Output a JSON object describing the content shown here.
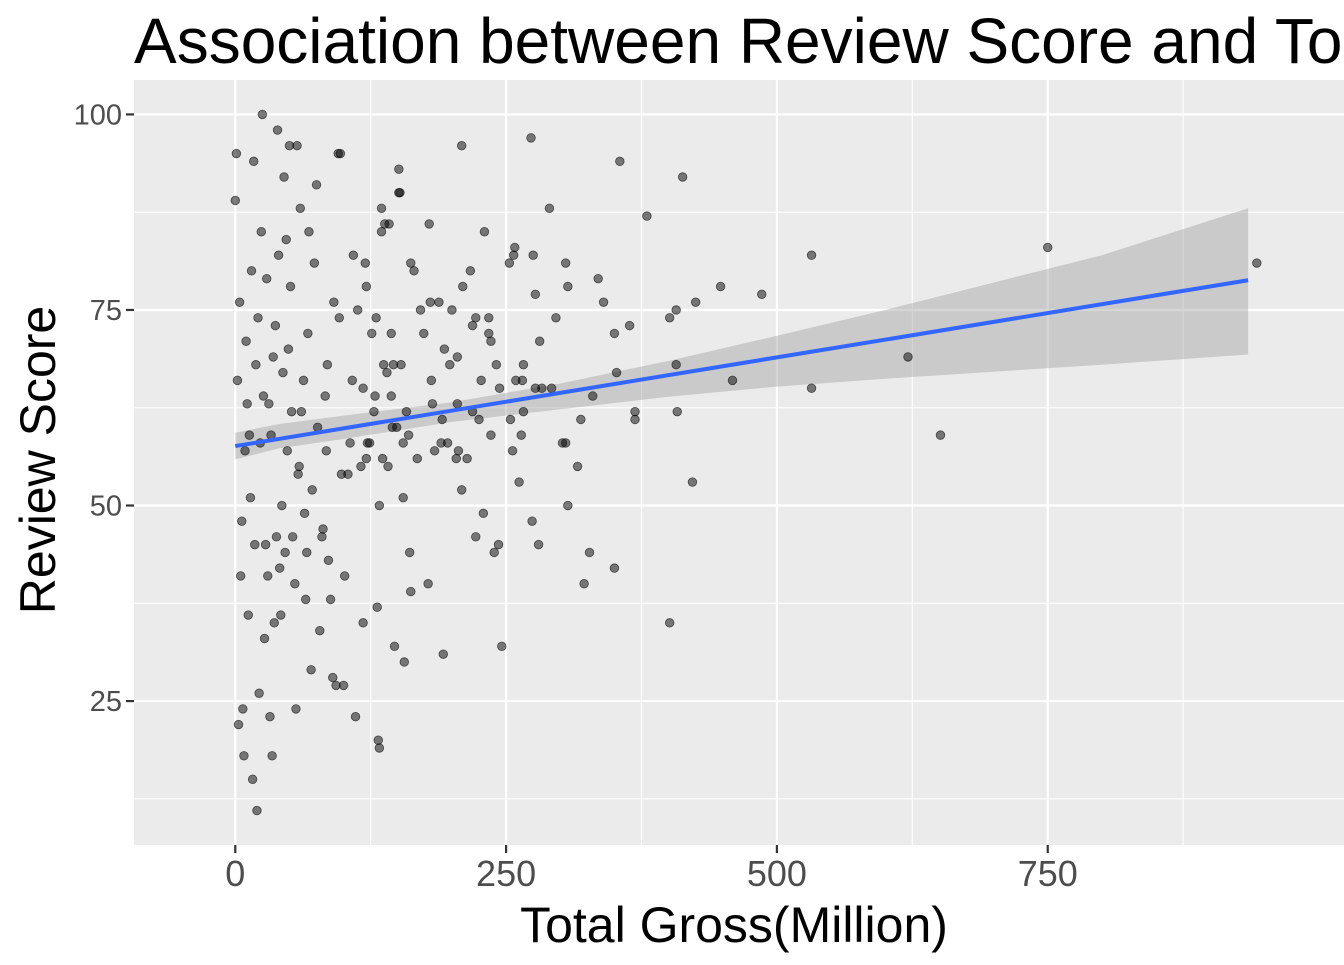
{
  "chart_data": {
    "type": "scatter",
    "title": "Association between Review Score and To",
    "xlabel": "Total Gross(Million)",
    "ylabel": "Review Score",
    "xlim": [
      -93.5,
      1023.5
    ],
    "ylim": [
      6.6,
      104.4
    ],
    "x_ticks": [
      0,
      250,
      500,
      750
    ],
    "x_tick_labels": [
      "0",
      "250",
      "500",
      "750"
    ],
    "y_ticks": [
      25,
      50,
      75,
      100
    ],
    "y_tick_labels": [
      "25",
      "50",
      "75",
      "100"
    ],
    "grid": true,
    "legend": "none",
    "colors": {
      "panel_background": "#ebebeb",
      "grid_major": "#ffffff",
      "point_fill": "#000000",
      "point_alpha": 0.5,
      "trend_line": "#3366ff",
      "confidence_band": "#999999"
    },
    "trend_line": {
      "method": "linear",
      "x": [
        0,
        935
      ],
      "y": [
        57.6,
        78.8
      ]
    },
    "confidence_band": {
      "x": [
        0,
        40,
        100,
        200,
        300,
        400,
        500,
        600,
        700,
        800,
        935
      ],
      "lower": [
        55.9,
        57.3,
        58.5,
        60.7,
        62.3,
        63.9,
        65.2,
        66.2,
        67.1,
        68.0,
        69.3
      ],
      "upper": [
        59.3,
        60.4,
        61.5,
        63.2,
        65.6,
        68.5,
        71.7,
        75.0,
        78.5,
        82.0,
        88.0
      ]
    },
    "series": [
      {
        "values": [
          [
            943,
            81
          ],
          [
            750,
            83
          ],
          [
            651,
            59
          ],
          [
            621,
            69
          ],
          [
            532,
            82
          ],
          [
            532,
            65
          ],
          [
            486,
            77
          ],
          [
            448,
            78
          ],
          [
            459,
            66
          ],
          [
            425,
            76
          ],
          [
            422,
            53
          ],
          [
            413,
            92
          ],
          [
            408,
            62
          ],
          [
            407,
            68
          ],
          [
            407,
            75
          ],
          [
            401,
            74
          ],
          [
            401,
            35
          ],
          [
            380,
            87
          ],
          [
            369,
            61
          ],
          [
            369,
            62
          ],
          [
            364,
            73
          ],
          [
            355,
            94
          ],
          [
            352,
            67
          ],
          [
            350,
            42
          ],
          [
            350,
            72
          ],
          [
            340,
            76
          ],
          [
            335,
            79
          ],
          [
            330,
            64
          ],
          [
            327,
            44
          ],
          [
            322,
            40
          ],
          [
            319,
            61
          ],
          [
            316,
            55
          ],
          [
            307,
            50
          ],
          [
            307,
            78
          ],
          [
            305,
            81
          ],
          [
            305,
            58
          ],
          [
            302,
            58
          ],
          [
            296,
            74
          ],
          [
            292,
            65
          ],
          [
            290,
            88
          ],
          [
            283,
            65
          ],
          [
            281,
            71
          ],
          [
            280,
            45
          ],
          [
            277,
            65
          ],
          [
            277,
            77
          ],
          [
            275,
            82
          ],
          [
            274,
            48
          ],
          [
            273,
            97
          ],
          [
            266,
            68
          ],
          [
            266,
            62
          ],
          [
            265,
            66
          ],
          [
            264,
            59
          ],
          [
            262,
            53
          ],
          [
            259,
            66
          ],
          [
            258,
            83
          ],
          [
            257,
            82
          ],
          [
            256,
            57
          ],
          [
            254,
            61
          ],
          [
            253,
            81
          ],
          [
            246,
            32
          ],
          [
            244,
            65
          ],
          [
            243,
            45
          ],
          [
            241,
            68
          ],
          [
            239,
            44
          ],
          [
            236,
            59
          ],
          [
            236,
            71
          ],
          [
            234,
            72
          ],
          [
            234,
            74
          ],
          [
            230,
            85
          ],
          [
            229,
            49
          ],
          [
            227,
            66
          ],
          [
            225,
            61
          ],
          [
            222,
            46
          ],
          [
            222,
            74
          ],
          [
            219,
            73
          ],
          [
            219,
            62
          ],
          [
            217,
            80
          ],
          [
            214,
            56
          ],
          [
            210,
            78
          ],
          [
            209,
            96
          ],
          [
            209,
            52
          ],
          [
            206,
            57
          ],
          [
            205,
            69
          ],
          [
            205,
            63
          ],
          [
            204,
            56
          ],
          [
            200,
            75
          ],
          [
            198,
            68
          ],
          [
            196,
            58
          ],
          [
            193,
            70
          ],
          [
            192,
            31
          ],
          [
            191,
            61
          ],
          [
            190,
            58
          ],
          [
            188,
            76
          ],
          [
            184,
            57
          ],
          [
            182,
            63
          ],
          [
            181,
            66
          ],
          [
            180,
            76
          ],
          [
            179,
            86
          ],
          [
            178,
            40
          ],
          [
            174,
            72
          ],
          [
            171,
            75
          ],
          [
            168,
            56
          ],
          [
            165,
            80
          ],
          [
            162,
            39
          ],
          [
            162,
            81
          ],
          [
            161,
            44
          ],
          [
            160,
            59
          ],
          [
            158,
            62
          ],
          [
            156,
            30
          ],
          [
            155,
            58
          ],
          [
            155,
            51
          ],
          [
            153,
            68
          ],
          [
            152,
            90
          ],
          [
            151,
            93
          ],
          [
            151,
            90
          ],
          [
            149,
            60
          ],
          [
            147,
            32
          ],
          [
            146,
            68
          ],
          [
            145,
            60
          ],
          [
            144,
            72
          ],
          [
            144,
            64
          ],
          [
            142,
            86
          ],
          [
            141,
            55
          ],
          [
            140,
            67
          ],
          [
            138,
            86
          ],
          [
            137,
            68
          ],
          [
            136,
            56
          ],
          [
            135,
            85
          ],
          [
            135,
            88
          ],
          [
            133,
            50
          ],
          [
            133,
            19
          ],
          [
            132,
            20
          ],
          [
            131,
            37
          ],
          [
            130,
            74
          ],
          [
            129,
            64
          ],
          [
            128,
            62
          ],
          [
            126,
            72
          ],
          [
            124,
            58
          ],
          [
            122,
            58
          ],
          [
            121,
            78
          ],
          [
            121,
            56
          ],
          [
            120,
            81
          ],
          [
            118,
            35
          ],
          [
            118,
            65
          ],
          [
            116,
            55
          ],
          [
            113,
            75
          ],
          [
            111,
            23
          ],
          [
            109,
            82
          ],
          [
            108,
            66
          ],
          [
            106,
            58
          ],
          [
            104,
            54
          ],
          [
            101,
            41
          ],
          [
            100,
            27
          ],
          [
            98,
            54
          ],
          [
            97,
            95
          ],
          [
            96,
            74
          ],
          [
            95,
            95
          ],
          [
            93,
            27
          ],
          [
            91,
            76
          ],
          [
            90,
            28
          ],
          [
            88,
            38
          ],
          [
            86,
            43
          ],
          [
            85,
            68
          ],
          [
            84,
            57
          ],
          [
            83,
            64
          ],
          [
            81,
            47
          ],
          [
            80,
            46
          ],
          [
            78,
            34
          ],
          [
            76,
            60
          ],
          [
            75,
            91
          ],
          [
            73,
            81
          ],
          [
            71,
            52
          ],
          [
            70,
            29
          ],
          [
            68,
            85
          ],
          [
            67,
            72
          ],
          [
            66,
            44
          ],
          [
            65,
            38
          ],
          [
            64,
            49
          ],
          [
            63,
            66
          ],
          [
            61,
            62
          ],
          [
            60,
            88
          ],
          [
            59,
            55
          ],
          [
            58,
            54
          ],
          [
            57,
            96
          ],
          [
            56,
            24
          ],
          [
            55,
            40
          ],
          [
            53,
            46
          ],
          [
            52,
            62
          ],
          [
            51,
            78
          ],
          [
            50,
            96
          ],
          [
            49,
            70
          ],
          [
            48,
            57
          ],
          [
            47,
            84
          ],
          [
            46,
            44
          ],
          [
            45,
            92
          ],
          [
            44,
            67
          ],
          [
            43,
            50
          ],
          [
            42,
            36
          ],
          [
            41,
            42
          ],
          [
            40,
            82
          ],
          [
            39,
            98
          ],
          [
            38,
            46
          ],
          [
            37,
            73
          ],
          [
            36,
            35
          ],
          [
            35,
            69
          ],
          [
            34,
            18
          ],
          [
            33,
            59
          ],
          [
            32,
            23
          ],
          [
            31,
            63
          ],
          [
            30,
            41
          ],
          [
            29,
            79
          ],
          [
            28,
            45
          ],
          [
            27,
            33
          ],
          [
            26,
            64
          ],
          [
            25,
            100
          ],
          [
            24,
            85
          ],
          [
            23,
            58
          ],
          [
            22,
            26
          ],
          [
            21,
            74
          ],
          [
            20,
            11
          ],
          [
            19,
            68
          ],
          [
            18,
            45
          ],
          [
            17,
            94
          ],
          [
            16,
            15
          ],
          [
            15,
            80
          ],
          [
            14,
            51
          ],
          [
            13,
            59
          ],
          [
            12,
            36
          ],
          [
            11,
            63
          ],
          [
            10,
            71
          ],
          [
            9,
            57
          ],
          [
            8,
            18
          ],
          [
            7,
            24
          ],
          [
            6,
            48
          ],
          [
            5,
            41
          ],
          [
            4,
            76
          ],
          [
            3,
            22
          ],
          [
            2,
            66
          ],
          [
            1,
            95
          ],
          [
            0,
            89
          ]
        ]
      }
    ]
  }
}
